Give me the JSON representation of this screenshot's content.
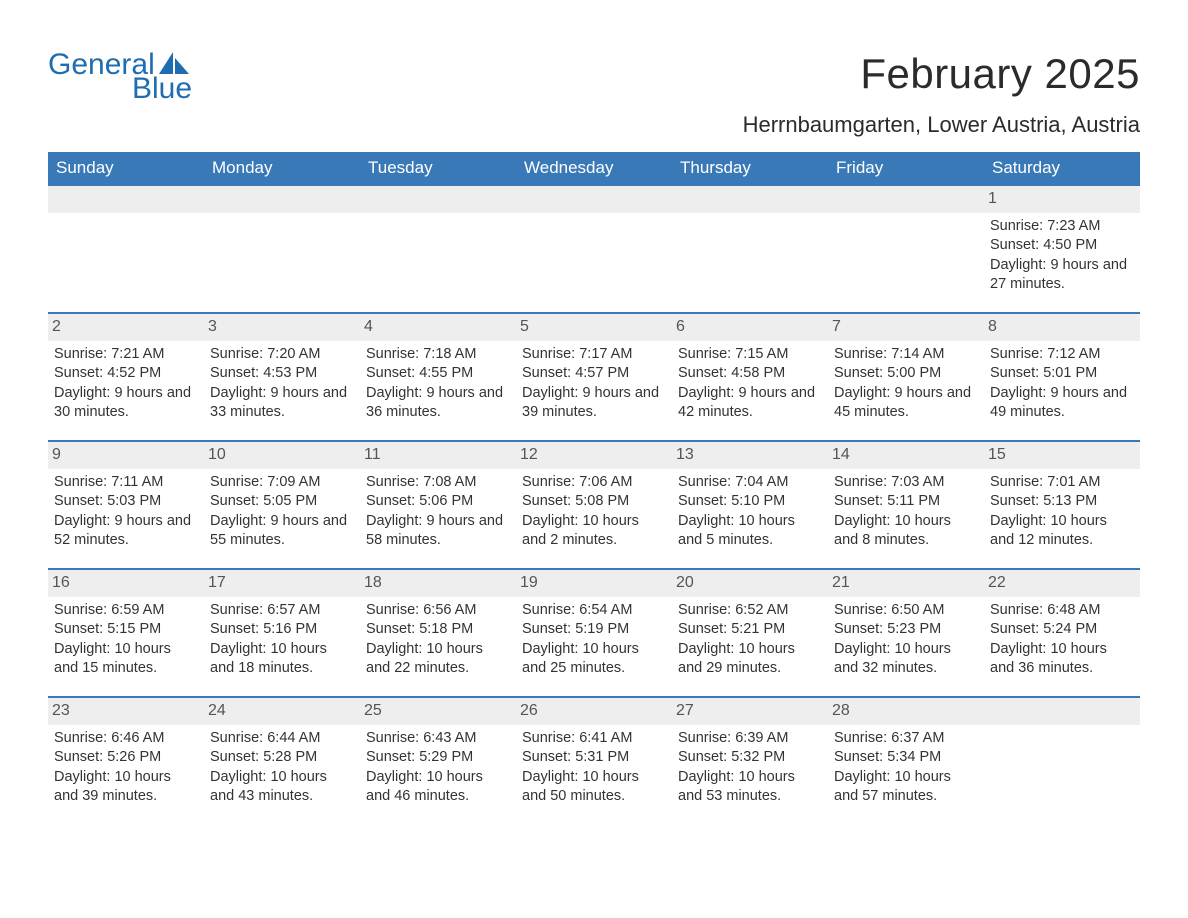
{
  "logo": {
    "text_general": "General",
    "text_blue": "Blue",
    "sail_color": "#1f6db0"
  },
  "title": "February 2025",
  "location": "Herrnbaumgarten, Lower Austria, Austria",
  "colors": {
    "header_bg": "#3a79b7",
    "header_text": "#ffffff",
    "week_border": "#3a79b7",
    "daynum_bg": "#eeeeee",
    "body_text": "#333333",
    "logo_color": "#1f6db0"
  },
  "fonts": {
    "title_size_pt": 32,
    "location_size_pt": 17,
    "dow_size_pt": 13,
    "body_size_pt": 11
  },
  "days_of_week": [
    "Sunday",
    "Monday",
    "Tuesday",
    "Wednesday",
    "Thursday",
    "Friday",
    "Saturday"
  ],
  "weeks": [
    [
      {
        "n": "",
        "empty": true
      },
      {
        "n": "",
        "empty": true
      },
      {
        "n": "",
        "empty": true
      },
      {
        "n": "",
        "empty": true
      },
      {
        "n": "",
        "empty": true
      },
      {
        "n": "",
        "empty": true
      },
      {
        "n": "1",
        "sunrise": "7:23 AM",
        "sunset": "4:50 PM",
        "daylight": "9 hours and 27 minutes."
      }
    ],
    [
      {
        "n": "2",
        "sunrise": "7:21 AM",
        "sunset": "4:52 PM",
        "daylight": "9 hours and 30 minutes."
      },
      {
        "n": "3",
        "sunrise": "7:20 AM",
        "sunset": "4:53 PM",
        "daylight": "9 hours and 33 minutes."
      },
      {
        "n": "4",
        "sunrise": "7:18 AM",
        "sunset": "4:55 PM",
        "daylight": "9 hours and 36 minutes."
      },
      {
        "n": "5",
        "sunrise": "7:17 AM",
        "sunset": "4:57 PM",
        "daylight": "9 hours and 39 minutes."
      },
      {
        "n": "6",
        "sunrise": "7:15 AM",
        "sunset": "4:58 PM",
        "daylight": "9 hours and 42 minutes."
      },
      {
        "n": "7",
        "sunrise": "7:14 AM",
        "sunset": "5:00 PM",
        "daylight": "9 hours and 45 minutes."
      },
      {
        "n": "8",
        "sunrise": "7:12 AM",
        "sunset": "5:01 PM",
        "daylight": "9 hours and 49 minutes."
      }
    ],
    [
      {
        "n": "9",
        "sunrise": "7:11 AM",
        "sunset": "5:03 PM",
        "daylight": "9 hours and 52 minutes."
      },
      {
        "n": "10",
        "sunrise": "7:09 AM",
        "sunset": "5:05 PM",
        "daylight": "9 hours and 55 minutes."
      },
      {
        "n": "11",
        "sunrise": "7:08 AM",
        "sunset": "5:06 PM",
        "daylight": "9 hours and 58 minutes."
      },
      {
        "n": "12",
        "sunrise": "7:06 AM",
        "sunset": "5:08 PM",
        "daylight": "10 hours and 2 minutes."
      },
      {
        "n": "13",
        "sunrise": "7:04 AM",
        "sunset": "5:10 PM",
        "daylight": "10 hours and 5 minutes."
      },
      {
        "n": "14",
        "sunrise": "7:03 AM",
        "sunset": "5:11 PM",
        "daylight": "10 hours and 8 minutes."
      },
      {
        "n": "15",
        "sunrise": "7:01 AM",
        "sunset": "5:13 PM",
        "daylight": "10 hours and 12 minutes."
      }
    ],
    [
      {
        "n": "16",
        "sunrise": "6:59 AM",
        "sunset": "5:15 PM",
        "daylight": "10 hours and 15 minutes."
      },
      {
        "n": "17",
        "sunrise": "6:57 AM",
        "sunset": "5:16 PM",
        "daylight": "10 hours and 18 minutes."
      },
      {
        "n": "18",
        "sunrise": "6:56 AM",
        "sunset": "5:18 PM",
        "daylight": "10 hours and 22 minutes."
      },
      {
        "n": "19",
        "sunrise": "6:54 AM",
        "sunset": "5:19 PM",
        "daylight": "10 hours and 25 minutes."
      },
      {
        "n": "20",
        "sunrise": "6:52 AM",
        "sunset": "5:21 PM",
        "daylight": "10 hours and 29 minutes."
      },
      {
        "n": "21",
        "sunrise": "6:50 AM",
        "sunset": "5:23 PM",
        "daylight": "10 hours and 32 minutes."
      },
      {
        "n": "22",
        "sunrise": "6:48 AM",
        "sunset": "5:24 PM",
        "daylight": "10 hours and 36 minutes."
      }
    ],
    [
      {
        "n": "23",
        "sunrise": "6:46 AM",
        "sunset": "5:26 PM",
        "daylight": "10 hours and 39 minutes."
      },
      {
        "n": "24",
        "sunrise": "6:44 AM",
        "sunset": "5:28 PM",
        "daylight": "10 hours and 43 minutes."
      },
      {
        "n": "25",
        "sunrise": "6:43 AM",
        "sunset": "5:29 PM",
        "daylight": "10 hours and 46 minutes."
      },
      {
        "n": "26",
        "sunrise": "6:41 AM",
        "sunset": "5:31 PM",
        "daylight": "10 hours and 50 minutes."
      },
      {
        "n": "27",
        "sunrise": "6:39 AM",
        "sunset": "5:32 PM",
        "daylight": "10 hours and 53 minutes."
      },
      {
        "n": "28",
        "sunrise": "6:37 AM",
        "sunset": "5:34 PM",
        "daylight": "10 hours and 57 minutes."
      },
      {
        "n": "",
        "empty": true
      }
    ]
  ],
  "labels": {
    "sunrise": "Sunrise: ",
    "sunset": "Sunset: ",
    "daylight": "Daylight: "
  }
}
